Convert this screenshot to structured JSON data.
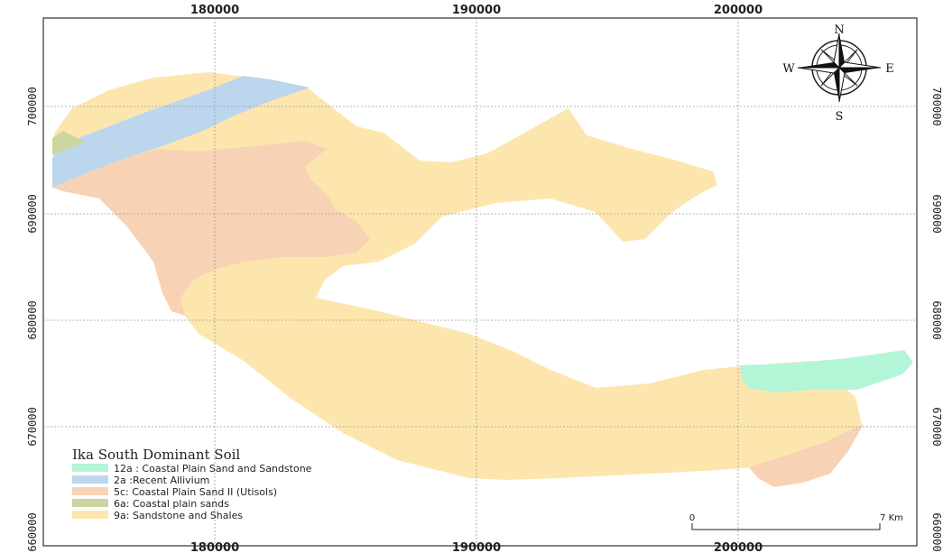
{
  "map": {
    "x_ticks": [
      "180000",
      "190000",
      "200000"
    ],
    "y_ticks": [
      "700000",
      "690000",
      "680000",
      "670000",
      "660000"
    ],
    "compass": {
      "n": "N",
      "s": "S",
      "e": "E",
      "w": "W"
    },
    "scale_bar": {
      "start": "0",
      "end": "7 Km"
    }
  },
  "legend": {
    "title": "Ika South Dominant Soil",
    "items": [
      {
        "label": "12a : Coastal Plain Sand and Sandstone",
        "color": "#b3f5d7"
      },
      {
        "label": "2a :Recent Allivium",
        "color": "#bcd6ee"
      },
      {
        "label": "5c: Coastal Plain Sand II (Utisols)",
        "color": "#f8d2b4"
      },
      {
        "label": "6a: Coastal plain sands",
        "color": "#ccd4a2"
      },
      {
        "label": "9a: Sandstone and Shales",
        "color": "#fde6ae"
      }
    ]
  }
}
